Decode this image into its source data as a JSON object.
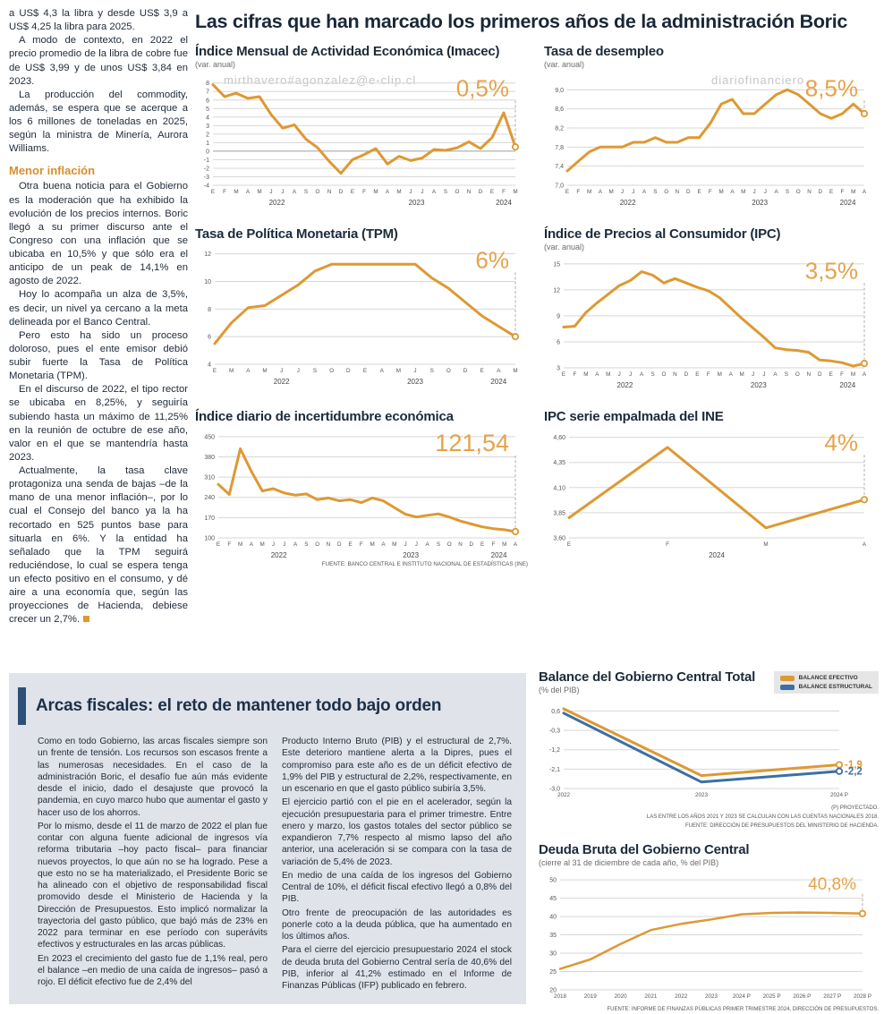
{
  "main_title": "Las cifras que han marcado los primeros años de la administración Boric",
  "source_note_top": "FUENTE: BANCO CENTRAL E INSTITUTO NACIONAL DE ESTADÍSTICAS (INE)",
  "watermarks": [
    "mirthavero#agonzalez@e-clip.cl",
    "diariofinanciero",
    "mirthavero#agonzalez@e-clip.cl"
  ],
  "colors": {
    "orange": "#DD9933",
    "blue": "#3C6FA5",
    "navy": "#1C2B3A"
  },
  "left_article": {
    "paras1": [
      "a US$ 4,3 la libra y desde US$ 3,9 a US$ 4,25 la libra para 2025.",
      "A modo de contexto, en 2022 el precio promedio de la libra de cobre fue de US$ 3,99 y de unos US$ 3,84 en 2023.",
      "La producción del commodity, además, se espera que se acerque a los 6 millones de toneladas en 2025, según la ministra de Minería, Aurora Williams."
    ],
    "subhead": "Menor inflación",
    "paras2": [
      "Otra buena noticia para el Gobierno es la moderación que ha exhibido la evolución de los precios internos. Boric llegó a su primer discurso ante el Congreso con una inflación que se ubicaba en 10,5% y que sólo era el anticipo de un peak de 14,1% en agosto de 2022.",
      "Hoy lo acompaña un alza de 3,5%, es decir, un nivel ya cercano a la meta delineada por el Banco Central.",
      "Pero esto ha sido un proceso doloroso, pues el ente emisor debió subir fuerte la Tasa de Política Monetaria (TPM).",
      "En el discurso de 2022, el tipo rector se ubicaba en 8,25%, y seguiría subiendo hasta un máximo de 11,25% en la reunión de octubre de ese año, valor en el que se mantendría hasta 2023.",
      "Actualmente, la tasa clave protagoniza una senda de bajas –de la mano de una menor inflación–, por lo cual el Consejo del banco ya la ha recortado en 525 puntos base para situarla en 6%. Y la entidad ha señalado que la TPM seguirá reduciéndose, lo cual se espera tenga un efecto positivo en el consumo, y dé aire a una economía que, según las proyecciones de Hacienda, debiese crecer un 2,7%."
    ]
  },
  "fiscal_box": {
    "title": "Arcas fiscales: el reto de mantener todo bajo orden",
    "col1": [
      "Como en todo Gobierno, las arcas fiscales siempre son un frente de tensión. Los recursos son escasos frente a las numerosas necesidades. En el caso de la administración Boric, el desafío fue aún más evidente desde el inicio, dado el desajuste que provocó la pandemia, en cuyo marco hubo que aumentar el gasto y hacer uso de los ahorros.",
      "Por lo mismo, desde el 11 de marzo de 2022 el plan fue contar con alguna fuente adicional de ingresos vía reforma tributaria –hoy pacto fiscal– para financiar nuevos proyectos, lo que aún no se ha logrado. Pese a que esto no se ha materializado, el Presidente Boric se ha alineado con el objetivo de responsabilidad fiscal promovido desde el Ministerio de Hacienda y la Dirección de Presupuestos. Esto implicó normalizar la trayectoria del gasto público, que bajó más de 23% en 2022 para terminar en ese período con superávits efectivos y estructurales en las arcas públicas.",
      "En 2023 el crecimiento del gasto fue de 1,1% real, pero el balance –en medio de una caída de ingresos– pasó a rojo. El déficit efectivo fue de 2,4% del"
    ],
    "col2": [
      "Producto Interno Bruto (PIB) y el estructural de 2,7%. Este deterioro mantiene alerta a la Dipres, pues el compromiso para este año es de un déficit efectivo de 1,9% del PIB y estructural de 2,2%, respectivamente, en un escenario en que el gasto público subiría 3,5%.",
      "El ejercicio partió con el pie en el acelerador, según la ejecución presupuestaria para el primer trimestre. Entre enero y marzo, los gastos totales del sector público se expandieron 7,7% respecto al mismo lapso del año anterior, una aceleración si se compara con la tasa de variación de 5,4% de 2023.",
      "En medio de una caída de los ingresos del Gobierno Central de 10%, el déficit fiscal efectivo llegó a 0,8% del PIB.",
      "Otro frente de preocupación de las autoridades es ponerle coto a la deuda pública, que ha aumentado en los últimos años.",
      "Para el cierre del ejercicio presupuestario 2024 el stock de deuda bruta del Gobierno Central sería de 40,6% del PIB, inferior al 41,2% estimado en el Informe de Finanzas Públicas (IFP) publicado en febrero."
    ]
  },
  "chart_data": [
    {
      "id": "imacec",
      "type": "line",
      "title": "Índice Mensual de Actividad Económica (Imacec)",
      "subtitle": "(var. anual)",
      "end_label": "0,5%",
      "label_size": 26,
      "ylim": [
        -4,
        8.6
      ],
      "ml": 20,
      "yticks": [
        {
          "v": 8,
          "t": "8"
        },
        {
          "v": 7,
          "t": "7"
        },
        {
          "v": 6,
          "t": "6"
        },
        {
          "v": 5,
          "t": "5"
        },
        {
          "v": 4,
          "t": "4"
        },
        {
          "v": 3,
          "t": "3"
        },
        {
          "v": 2,
          "t": "2"
        },
        {
          "v": 1,
          "t": "1"
        },
        {
          "v": 0,
          "t": "0"
        },
        {
          "v": -1,
          "t": "-1"
        },
        {
          "v": -2,
          "t": "-2"
        },
        {
          "v": -3,
          "t": "-3"
        },
        {
          "v": -4,
          "t": "-4"
        }
      ],
      "xlabels": [
        "E",
        "F",
        "M",
        "A",
        "M",
        "J",
        "J",
        "A",
        "S",
        "O",
        "N",
        "D",
        "E",
        "F",
        "M",
        "A",
        "M",
        "J",
        "J",
        "A",
        "S",
        "O",
        "N",
        "D",
        "E",
        "F",
        "M"
      ],
      "years": [
        {
          "label": "2022",
          "from": 0,
          "to": 11
        },
        {
          "label": "2023",
          "from": 12,
          "to": 23
        },
        {
          "label": "2024",
          "from": 24,
          "to": 26
        }
      ],
      "series": [
        {
          "name": "Imacec",
          "color": "orange",
          "values": [
            7.8,
            6.4,
            6.8,
            6.2,
            6.4,
            4.3,
            2.7,
            3.1,
            1.4,
            0.4,
            -1.2,
            -2.6,
            -1.0,
            -0.4,
            0.3,
            -1.5,
            -0.6,
            -1.1,
            -0.8,
            0.2,
            0.1,
            0.4,
            1.1,
            0.3,
            1.6,
            4.5,
            0.5
          ]
        }
      ]
    },
    {
      "id": "desempleo",
      "type": "line",
      "title": "Tasa de desempleo",
      "subtitle": "(var. anual)",
      "end_label": "8,5%",
      "label_size": 26,
      "ylim": [
        7.0,
        9.25
      ],
      "ml": 26,
      "yticks": [
        {
          "v": 9.0,
          "t": "9,0"
        },
        {
          "v": 8.6,
          "t": "8,6"
        },
        {
          "v": 8.2,
          "t": "8,2"
        },
        {
          "v": 7.8,
          "t": "7,8"
        },
        {
          "v": 7.4,
          "t": "7,4"
        },
        {
          "v": 7.0,
          "t": "7,0"
        }
      ],
      "xlabels": [
        "E",
        "F",
        "M",
        "A",
        "M",
        "J",
        "J",
        "A",
        "S",
        "O",
        "N",
        "D",
        "E",
        "F",
        "M",
        "A",
        "M",
        "J",
        "J",
        "A",
        "S",
        "O",
        "N",
        "D",
        "E",
        "F",
        "M",
        "A"
      ],
      "years": [
        {
          "label": "2022",
          "from": 0,
          "to": 11
        },
        {
          "label": "2023",
          "from": 12,
          "to": 23
        },
        {
          "label": "2024",
          "from": 24,
          "to": 27
        }
      ],
      "series": [
        {
          "name": "Tasa de desempleo",
          "color": "orange",
          "values": [
            7.3,
            7.5,
            7.7,
            7.8,
            7.8,
            7.8,
            7.9,
            7.9,
            8.0,
            7.9,
            7.9,
            8.0,
            8.0,
            8.3,
            8.7,
            8.8,
            8.5,
            8.5,
            8.7,
            8.9,
            9.0,
            8.9,
            8.7,
            8.5,
            8.4,
            8.5,
            8.7,
            8.5
          ]
        }
      ]
    },
    {
      "id": "tpm",
      "type": "line",
      "title": "Tasa de Política Monetaria (TPM)",
      "subtitle": "",
      "end_label": "6%",
      "label_size": 26,
      "ylim": [
        4,
        12.3
      ],
      "ml": 22,
      "yticks": [
        {
          "v": 12,
          "t": "12"
        },
        {
          "v": 10,
          "t": "10"
        },
        {
          "v": 8,
          "t": "8"
        },
        {
          "v": 6,
          "t": "6"
        },
        {
          "v": 4,
          "t": "4"
        }
      ],
      "xlabels": [
        "E",
        "M",
        "A",
        "M",
        "J",
        "J",
        "S",
        "O",
        "D",
        "E",
        "A",
        "M",
        "J",
        "S",
        "O",
        "D",
        "E",
        "A",
        "M"
      ],
      "years": [
        {
          "label": "2022",
          "from": 0,
          "to": 8
        },
        {
          "label": "2023",
          "from": 9,
          "to": 15
        },
        {
          "label": "2024",
          "from": 16,
          "to": 18
        }
      ],
      "series": [
        {
          "name": "TPM",
          "color": "orange",
          "values": [
            5.5,
            7.0,
            8.1,
            8.25,
            9.0,
            9.75,
            10.75,
            11.25,
            11.25,
            11.25,
            11.25,
            11.25,
            11.25,
            10.25,
            9.5,
            8.5,
            7.5,
            6.75,
            6.0
          ]
        }
      ]
    },
    {
      "id": "ipc",
      "type": "line",
      "title": "Índice de Precios al Consumidor (IPC)",
      "subtitle": "(var. anual)",
      "end_label": "3,5%",
      "label_size": 26,
      "ylim": [
        3,
        15.4
      ],
      "ml": 22,
      "yticks": [
        {
          "v": 15,
          "t": "15"
        },
        {
          "v": 12,
          "t": "12"
        },
        {
          "v": 9,
          "t": "9"
        },
        {
          "v": 6,
          "t": "6"
        },
        {
          "v": 3,
          "t": "3"
        }
      ],
      "xlabels": [
        "E",
        "F",
        "M",
        "A",
        "M",
        "J",
        "J",
        "A",
        "S",
        "O",
        "N",
        "D",
        "E",
        "F",
        "M",
        "A",
        "M",
        "J",
        "J",
        "A",
        "S",
        "O",
        "N",
        "D",
        "E",
        "F",
        "M",
        "A"
      ],
      "years": [
        {
          "label": "2022",
          "from": 0,
          "to": 11
        },
        {
          "label": "2023",
          "from": 12,
          "to": 23
        },
        {
          "label": "2024",
          "from": 24,
          "to": 27
        }
      ],
      "series": [
        {
          "name": "IPC",
          "color": "orange",
          "values": [
            7.7,
            7.8,
            9.4,
            10.5,
            11.5,
            12.5,
            13.1,
            14.1,
            13.7,
            12.8,
            13.3,
            12.8,
            12.3,
            11.9,
            11.1,
            9.9,
            8.7,
            7.6,
            6.5,
            5.3,
            5.1,
            5.0,
            4.8,
            3.9,
            3.8,
            3.6,
            3.2,
            3.5
          ]
        }
      ]
    },
    {
      "id": "incertidumbre",
      "type": "line",
      "title": "Índice diario de incertidumbre económica",
      "subtitle": "",
      "end_label": "121,54",
      "label_size": 27,
      "ylim": [
        100,
        465
      ],
      "ml": 26,
      "yticks": [
        {
          "v": 450,
          "t": "450"
        },
        {
          "v": 380,
          "t": "380"
        },
        {
          "v": 310,
          "t": "310"
        },
        {
          "v": 240,
          "t": "240"
        },
        {
          "v": 170,
          "t": "170"
        },
        {
          "v": 100,
          "t": "100"
        }
      ],
      "xlabels": [
        "E",
        "F",
        "M",
        "A",
        "M",
        "J",
        "J",
        "A",
        "S",
        "O",
        "N",
        "D",
        "E",
        "F",
        "M",
        "A",
        "M",
        "J",
        "J",
        "A",
        "S",
        "O",
        "N",
        "D",
        "E",
        "F",
        "M",
        "A"
      ],
      "years": [
        {
          "label": "2022",
          "from": 0,
          "to": 11
        },
        {
          "label": "2023",
          "from": 12,
          "to": 23
        },
        {
          "label": "2024",
          "from": 24,
          "to": 27
        }
      ],
      "series": [
        {
          "name": "Incertidumbre económica",
          "color": "orange",
          "values": [
            285,
            250,
            408,
            330,
            262,
            270,
            255,
            248,
            252,
            232,
            238,
            228,
            232,
            222,
            238,
            228,
            205,
            182,
            172,
            178,
            183,
            172,
            158,
            148,
            138,
            132,
            128,
            121.54
          ]
        }
      ]
    },
    {
      "id": "ipc_empalmada",
      "type": "line",
      "title": "IPC serie empalmada del INE",
      "subtitle": "",
      "end_label": "4%",
      "label_size": 26,
      "ylim": [
        3.6,
        4.65
      ],
      "ml": 28,
      "yticks": [
        {
          "v": 4.6,
          "t": "4,60"
        },
        {
          "v": 4.35,
          "t": "4,35"
        },
        {
          "v": 4.1,
          "t": "4,10"
        },
        {
          "v": 3.85,
          "t": "3,85"
        },
        {
          "v": 3.6,
          "t": "3,60"
        }
      ],
      "xlabels": [
        "E",
        "F",
        "M",
        "A"
      ],
      "years": [
        {
          "label": "2024",
          "from": 0,
          "to": 3
        }
      ],
      "series": [
        {
          "name": "IPC serie empalmada",
          "color": "orange",
          "values": [
            3.8,
            4.5,
            3.7,
            3.98
          ]
        }
      ]
    },
    {
      "id": "balance_gobierno",
      "type": "line",
      "title": "Balance del Gobierno Central Total",
      "subtitle": "(% del PIB)",
      "ylim": [
        -3.0,
        0.95
      ],
      "ml": 28,
      "mr": 40,
      "yticks": [
        {
          "v": 0.6,
          "t": "0,6"
        },
        {
          "v": -0.3,
          "t": "-0,3"
        },
        {
          "v": -1.2,
          "t": "-1,2"
        },
        {
          "v": -2.1,
          "t": "-2,1"
        },
        {
          "v": -3.0,
          "t": "-3,0"
        }
      ],
      "xlabels": [
        "2022",
        "2023",
        "2024 P"
      ],
      "legend": [
        {
          "label": "BALANCE EFECTIVO",
          "color": "orange"
        },
        {
          "label": "BALANCE ESTRUCTURAL",
          "color": "blue"
        }
      ],
      "series": [
        {
          "name": "Balance efectivo",
          "color": "orange",
          "end_label": "-1,9",
          "values": [
            0.7,
            -2.4,
            -1.9
          ]
        },
        {
          "name": "Balance estructural",
          "color": "blue",
          "end_label": "-2,2",
          "values": [
            0.5,
            -2.7,
            -2.2
          ]
        }
      ],
      "footnotes": [
        "(P) PROYECTADO.",
        "LAS ENTRE LOS AÑOS 2021 Y 2023 SE CALCULAN CON LAS CUENTAS NACIONALES 2018.",
        "FUENTE: DIRECCIÓN DE PRESUPUESTOS DEL MINISTERIO DE HACIENDA."
      ]
    },
    {
      "id": "deuda_bruta",
      "type": "line",
      "title": "Deuda Bruta del Gobierno Central",
      "subtitle": "(cierre al 31 de diciembre de cada año, % del PIB)",
      "end_label": "40,8%",
      "label_size": 19,
      "ylim": [
        20,
        51
      ],
      "ml": 24,
      "lw": 2.5,
      "yticks": [
        {
          "v": 50,
          "t": "50"
        },
        {
          "v": 45,
          "t": "45"
        },
        {
          "v": 40,
          "t": "40"
        },
        {
          "v": 35,
          "t": "35"
        },
        {
          "v": 30,
          "t": "30"
        },
        {
          "v": 25,
          "t": "25"
        },
        {
          "v": 20,
          "t": "20"
        }
      ],
      "xlabels": [
        "2018",
        "2019",
        "2020",
        "2021",
        "2022",
        "2023",
        "2024 P",
        "2025 P",
        "2026 P",
        "2027 P",
        "2028 P"
      ],
      "series": [
        {
          "name": "Deuda bruta",
          "color": "orange",
          "values": [
            25.7,
            28.3,
            32.5,
            36.3,
            38.0,
            39.2,
            40.6,
            41.0,
            41.1,
            41.0,
            40.8
          ]
        }
      ],
      "footnote": "FUENTE: INFORME DE FINANZAS PÚBLICAS PRIMER TRIMESTRE 2024, DIRECCIÓN DE PRESUPUESTOS."
    }
  ]
}
